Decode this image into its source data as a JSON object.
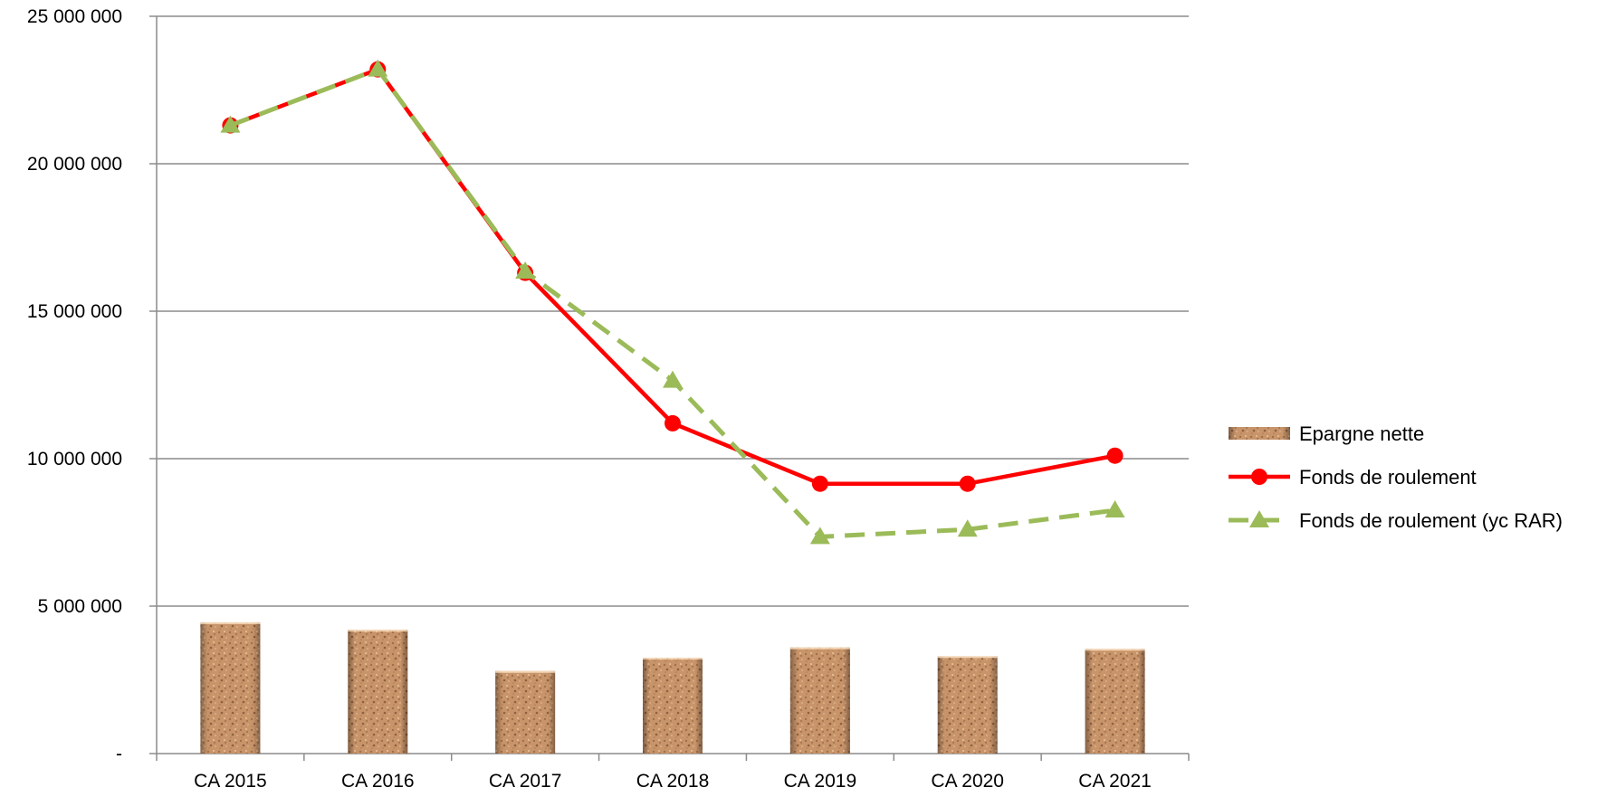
{
  "chart_data": {
    "type": "bar",
    "categories": [
      "CA 2015",
      "CA 2016",
      "CA 2017",
      "CA 2018",
      "CA 2019",
      "CA 2020",
      "CA 2021"
    ],
    "series": [
      {
        "name": "Epargne nette",
        "kind": "bar",
        "color": "#c8946a",
        "values": [
          4450000,
          4200000,
          2800000,
          3250000,
          3600000,
          3300000,
          3550000
        ]
      },
      {
        "name": "Fonds de roulement",
        "kind": "line",
        "color": "#ff0000",
        "marker": "circle",
        "values": [
          21300000,
          23200000,
          16300000,
          11200000,
          9150000,
          9150000,
          10100000
        ]
      },
      {
        "name": "Fonds de roulement (yc RAR)",
        "kind": "line",
        "color": "#9bbb59",
        "marker": "triangle",
        "dashed": true,
        "values": [
          21300000,
          23200000,
          16350000,
          12650000,
          7350000,
          7600000,
          8250000
        ]
      }
    ],
    "yticks": [
      0,
      5000000,
      10000000,
      15000000,
      20000000,
      25000000
    ],
    "ytick_labels": [
      "-",
      "5 000 000",
      "10 000 000",
      "15 000 000",
      "20 000 000",
      "25 000 000"
    ],
    "ylim": [
      0,
      25000000
    ],
    "grid": true,
    "legend_position": "right"
  }
}
